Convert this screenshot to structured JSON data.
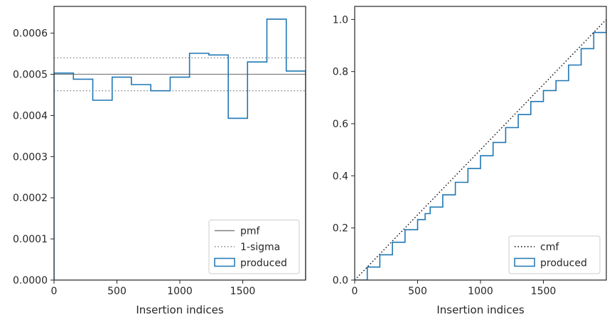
{
  "chart_data": [
    {
      "type": "histogram",
      "xlabel": "Insertion indices",
      "ylabel": "",
      "xlim": [
        0,
        2000
      ],
      "ylim": [
        0,
        0.000665
      ],
      "xticks": [
        0,
        500,
        1000,
        1500
      ],
      "xtick_labels": [
        "0",
        "500",
        "1000",
        "1500"
      ],
      "yticks": [
        0,
        0.0001,
        0.0002,
        0.0003,
        0.0004,
        0.0005,
        0.0006
      ],
      "ytick_labels": [
        "0.0000",
        "0.0001",
        "0.0002",
        "0.0003",
        "0.0004",
        "0.0005",
        "0.0006"
      ],
      "reference_lines": [
        {
          "name": "pmf",
          "y": 0.0005,
          "style": "solid",
          "color": "#808080"
        },
        {
          "name": "1-sigma",
          "y": 0.00054,
          "style": "dotted",
          "color": "#808080"
        },
        {
          "name": "1-sigma",
          "y": 0.00046,
          "style": "dotted",
          "color": "#808080"
        }
      ],
      "series": [
        {
          "name": "produced",
          "style": "step",
          "color": "#1f77b4",
          "bin_edges": [
            0,
            154,
            308,
            462,
            615,
            769,
            923,
            1077,
            1231,
            1385,
            1538,
            1692,
            1846,
            2000
          ],
          "values": [
            0.000503,
            0.000488,
            0.000437,
            0.000493,
            0.000475,
            0.00046,
            0.000493,
            0.000551,
            0.000547,
            0.000393,
            0.00053,
            0.000634,
            0.000508
          ]
        }
      ],
      "legend": {
        "position": "lower-right",
        "entries": [
          {
            "label": "pmf",
            "kind": "solid"
          },
          {
            "label": "1-sigma",
            "kind": "dotted"
          },
          {
            "label": "produced",
            "kind": "patch"
          }
        ]
      }
    },
    {
      "type": "line",
      "xlabel": "Insertion indices",
      "ylabel": "",
      "xlim": [
        0,
        2000
      ],
      "ylim": [
        0,
        1.05
      ],
      "xticks": [
        0,
        500,
        1000,
        1500
      ],
      "xtick_labels": [
        "0",
        "500",
        "1000",
        "1500"
      ],
      "yticks": [
        0,
        0.2,
        0.4,
        0.6,
        0.8,
        1.0
      ],
      "ytick_labels": [
        "0.0",
        "0.2",
        "0.4",
        "0.6",
        "0.8",
        "1.0"
      ],
      "series": [
        {
          "name": "cmf",
          "style": "dotted",
          "color": "#000000",
          "x": [
            0,
            2000
          ],
          "y": [
            0,
            1.0
          ]
        },
        {
          "name": "produced",
          "style": "step",
          "color": "#1f77b4",
          "x": [
            0,
            100,
            200,
            300,
            400,
            500,
            560,
            600,
            700,
            800,
            900,
            1000,
            1100,
            1200,
            1300,
            1400,
            1500,
            1600,
            1700,
            1800,
            1900,
            2000
          ],
          "y": [
            0,
            0.05,
            0.097,
            0.145,
            0.193,
            0.232,
            0.255,
            0.28,
            0.327,
            0.375,
            0.428,
            0.477,
            0.528,
            0.585,
            0.635,
            0.685,
            0.727,
            0.765,
            0.825,
            0.888,
            0.95,
            1.0
          ]
        }
      ],
      "legend": {
        "position": "lower-right",
        "entries": [
          {
            "label": "cmf",
            "kind": "dotted"
          },
          {
            "label": "produced",
            "kind": "patch"
          }
        ]
      }
    }
  ]
}
